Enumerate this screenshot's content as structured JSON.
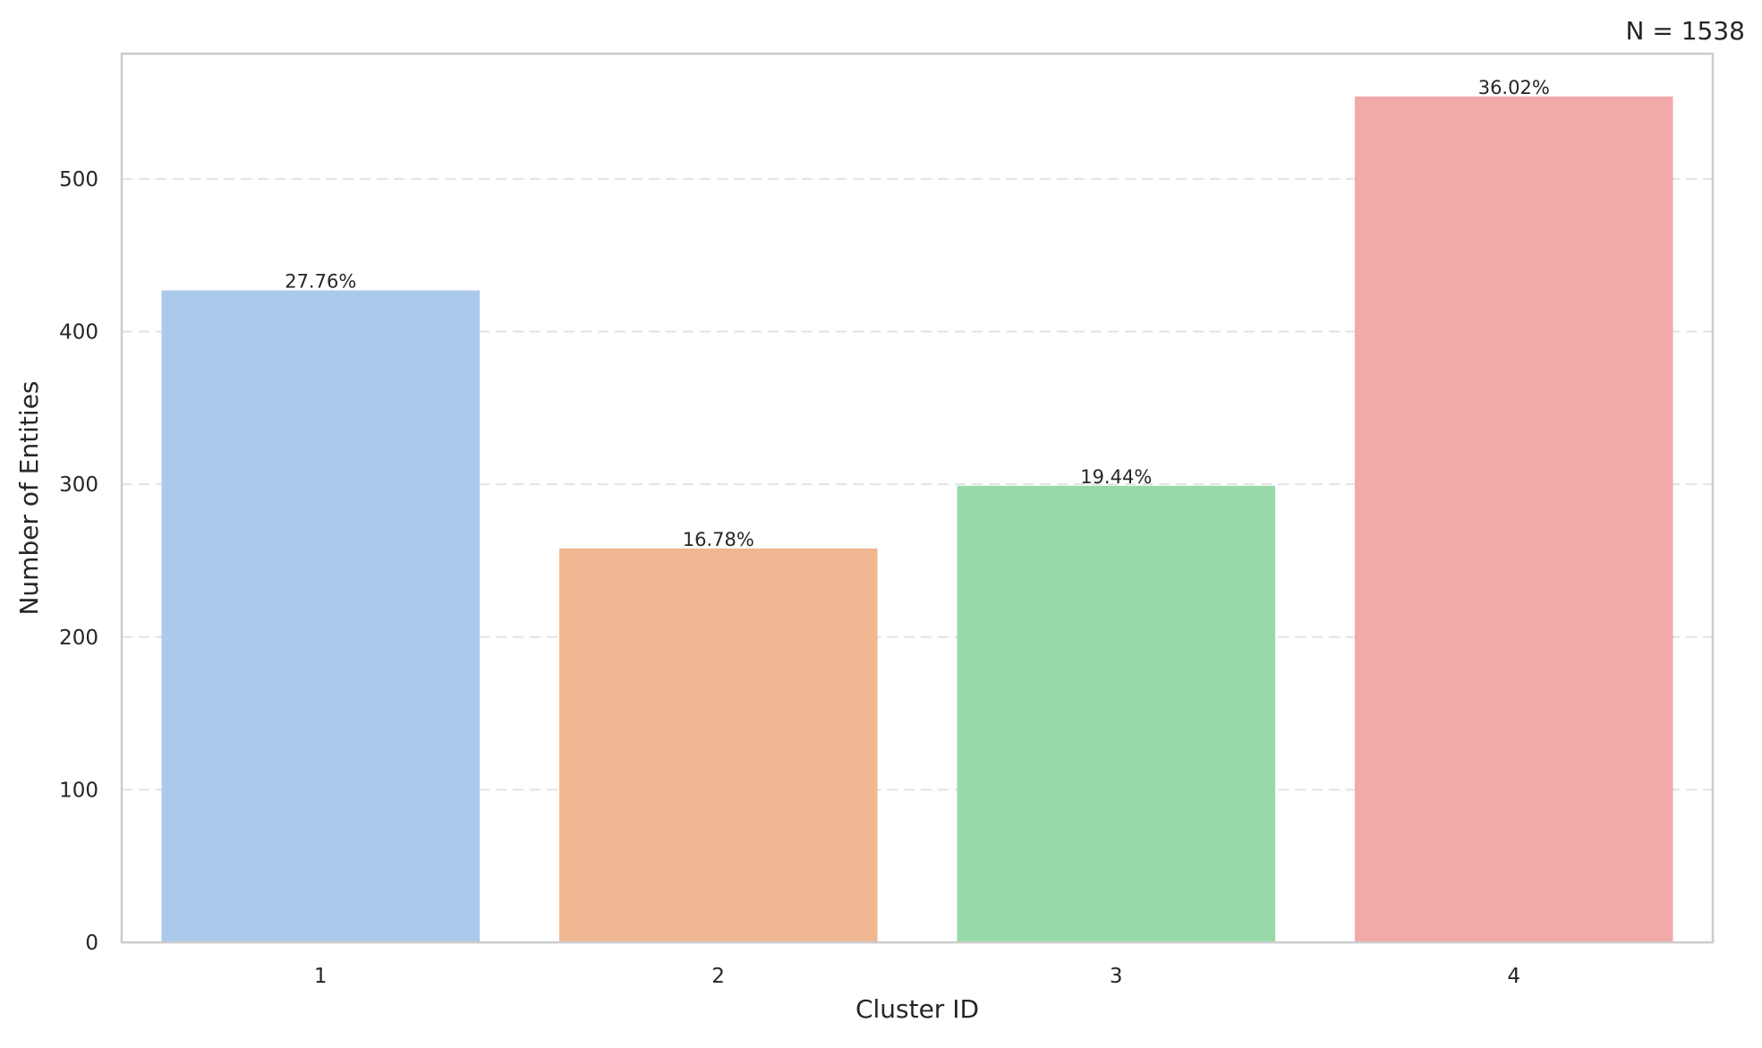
{
  "chart_data": {
    "type": "bar",
    "title": "",
    "annotation": "N = 1538",
    "xlabel": "Cluster ID",
    "ylabel": "Number of Entities",
    "categories": [
      "1",
      "2",
      "3",
      "4"
    ],
    "values": [
      427,
      258,
      299,
      554
    ],
    "data_labels": [
      "27.76%",
      "16.78%",
      "19.44%",
      "36.02%"
    ],
    "colors": [
      "#abc9ea",
      "#efb792",
      "#98daa7",
      "#f1aaa8"
    ],
    "ylim": [
      0,
      582
    ],
    "yticks": [
      0,
      100,
      200,
      300,
      400,
      500
    ],
    "grid": true,
    "grid_style": "dashed-horizontal",
    "legend": "none"
  }
}
